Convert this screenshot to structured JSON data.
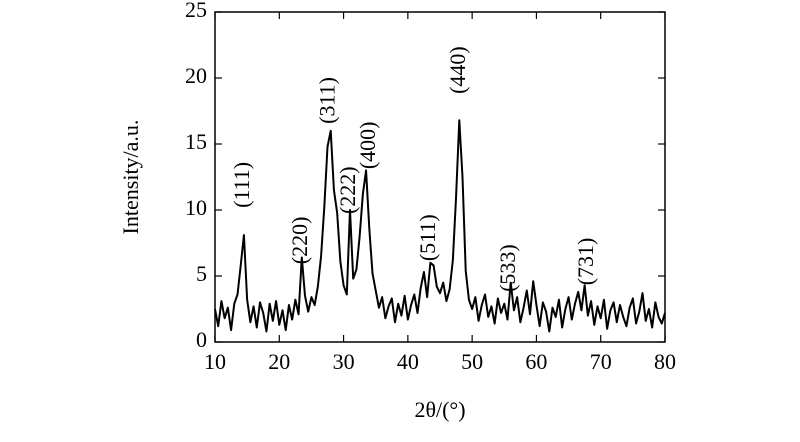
{
  "chart_data": {
    "type": "line",
    "xlabel": "2θ/(°)",
    "ylabel": "Intensity/a.u.",
    "color": "#000000",
    "xlim": [
      10,
      80
    ],
    "xticks": [
      10,
      20,
      30,
      40,
      50,
      60,
      70,
      80
    ],
    "ylim": [
      0,
      25
    ],
    "yticks": [
      0,
      5,
      10,
      15,
      20,
      25
    ],
    "grid": false,
    "x": [
      10,
      10.5,
      11,
      11.5,
      12,
      12.5,
      13,
      13.5,
      14,
      14.5,
      15,
      15.5,
      16,
      16.5,
      17,
      17.5,
      18,
      18.5,
      19,
      19.5,
      20,
      20.5,
      21,
      21.5,
      22,
      22.5,
      23,
      23.5,
      24,
      24.5,
      25,
      25.5,
      26,
      26.5,
      27,
      27.5,
      28,
      28.5,
      29,
      29.5,
      30,
      30.5,
      31,
      31.5,
      32,
      32.5,
      33,
      33.5,
      34,
      34.5,
      35,
      35.5,
      36,
      36.5,
      37,
      37.5,
      38,
      38.5,
      39,
      39.5,
      40,
      40.5,
      41,
      41.5,
      42,
      42.5,
      43,
      43.5,
      44,
      44.5,
      45,
      45.5,
      46,
      46.5,
      47,
      47.5,
      48,
      48.5,
      49,
      49.5,
      50,
      50.5,
      51,
      51.5,
      52,
      52.5,
      53,
      53.5,
      54,
      54.5,
      55,
      55.5,
      56,
      56.5,
      57,
      57.5,
      58,
      58.5,
      59,
      59.5,
      60,
      60.5,
      61,
      61.5,
      62,
      62.5,
      63,
      63.5,
      64,
      64.5,
      65,
      65.5,
      66,
      66.5,
      67,
      67.5,
      68,
      68.5,
      69,
      69.5,
      70,
      70.5,
      71,
      71.5,
      72,
      72.5,
      73,
      73.5,
      74,
      74.5,
      75,
      75.5,
      76,
      76.5,
      77,
      77.5,
      78,
      78.5,
      79,
      79.5,
      80
    ],
    "values": [
      2.5,
      1.2,
      3.1,
      1.8,
      2.6,
      0.9,
      2.9,
      3.6,
      5.8,
      8.1,
      3.2,
      1.5,
      2.7,
      1.1,
      3.0,
      2.2,
      0.8,
      2.9,
      1.6,
      3.1,
      1.3,
      2.4,
      0.9,
      2.8,
      1.7,
      3.2,
      2.1,
      6.4,
      3.5,
      2.3,
      3.4,
      2.8,
      4.2,
      6.5,
      10.2,
      14.8,
      16.0,
      11.5,
      9.8,
      6.1,
      4.3,
      3.6,
      10.0,
      4.8,
      5.5,
      8.0,
      11.2,
      13.0,
      8.6,
      5.2,
      3.9,
      2.6,
      3.4,
      1.8,
      2.7,
      3.3,
      1.5,
      2.9,
      2.0,
      3.5,
      1.7,
      2.8,
      3.6,
      2.2,
      4.1,
      5.3,
      3.4,
      6.0,
      5.8,
      4.2,
      3.7,
      4.5,
      3.1,
      4.0,
      6.2,
      11.0,
      16.8,
      12.5,
      5.4,
      3.2,
      2.5,
      3.4,
      1.6,
      2.8,
      3.6,
      1.9,
      2.7,
      1.4,
      3.3,
      2.2,
      2.9,
      1.7,
      4.5,
      2.4,
      3.4,
      1.5,
      2.6,
      3.9,
      2.1,
      4.6,
      2.8,
      1.2,
      3.0,
      2.3,
      0.8,
      2.6,
      1.9,
      3.2,
      1.1,
      2.5,
      3.4,
      1.7,
      2.9,
      3.8,
      2.4,
      4.3,
      2.0,
      3.1,
      1.3,
      2.7,
      1.8,
      3.2,
      1.0,
      2.4,
      3.0,
      1.5,
      2.8,
      1.9,
      1.2,
      2.6,
      3.3,
      1.4,
      2.3,
      3.7,
      1.6,
      2.5,
      1.1,
      3.0,
      1.9,
      1.4,
      2.2
    ],
    "annotations": [
      {
        "text": "(111)",
        "x": 14.5,
        "y": 11.9
      },
      {
        "text": "(220)",
        "x": 23.5,
        "y": 7.7
      },
      {
        "text": "(311)",
        "x": 27.8,
        "y": 18.3
      },
      {
        "text": "(222)",
        "x": 31,
        "y": 11.5
      },
      {
        "text": "(400)",
        "x": 34.1,
        "y": 14.9
      },
      {
        "text": "(511)",
        "x": 43.4,
        "y": 7.9
      },
      {
        "text": "(440)",
        "x": 48.1,
        "y": 20.6
      },
      {
        "text": "(533)",
        "x": 55.9,
        "y": 5.6
      },
      {
        "text": "(731)",
        "x": 68,
        "y": 6.1
      }
    ]
  }
}
